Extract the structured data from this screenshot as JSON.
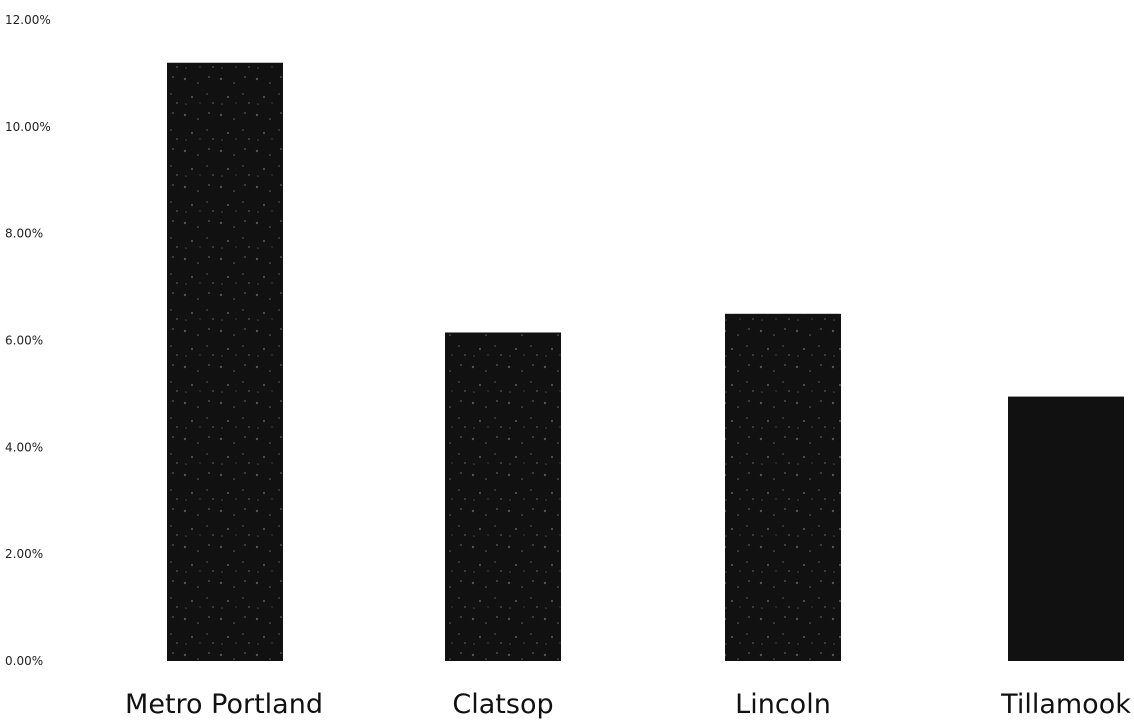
{
  "chart_data": {
    "type": "bar",
    "categories": [
      "Metro Portland",
      "Clatsop",
      "Lincoln",
      "Tillamook"
    ],
    "values": [
      11.2,
      6.15,
      6.5,
      4.95
    ],
    "value_unit": "%",
    "ylim": [
      0,
      12
    ],
    "yticks": [
      "0.00%",
      "2.00%",
      "4.00%",
      "6.00%",
      "8.00%",
      "10.00%",
      "12.00%"
    ],
    "grid": false,
    "legend": "none",
    "bar_color": "#111111",
    "bar_texture_color": "#8a8a8a"
  }
}
